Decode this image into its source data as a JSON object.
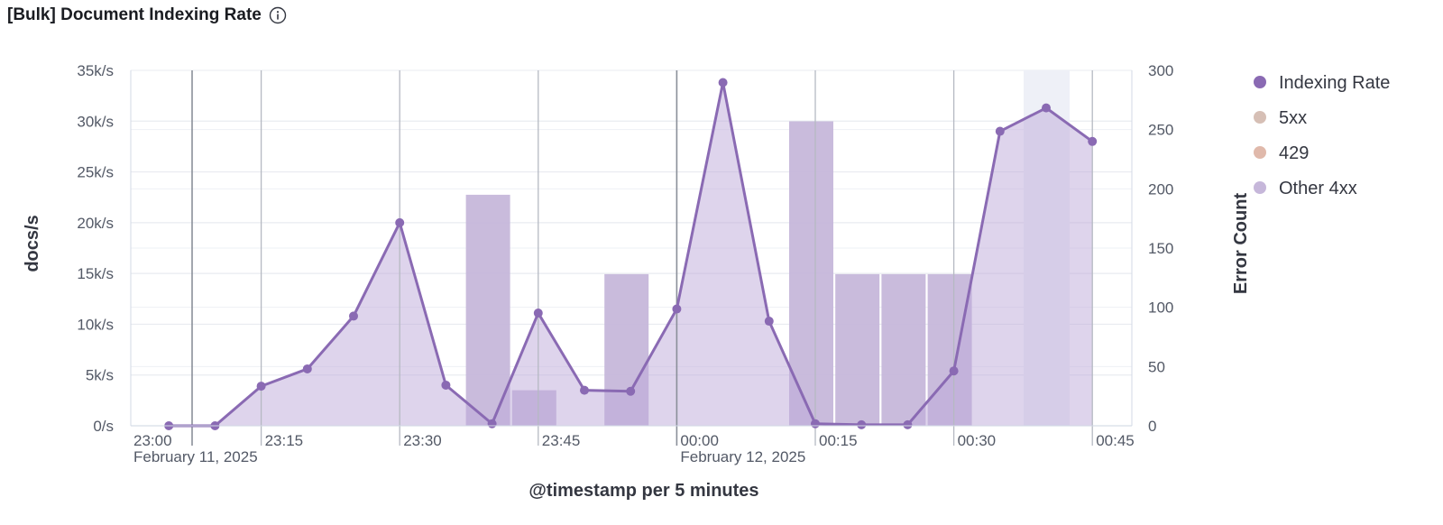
{
  "panel": {
    "title": "[Bulk] Document Indexing Rate"
  },
  "chart_data": {
    "type": "line",
    "xlabel": "@timestamp per 5 minutes",
    "ylabel": "docs/s",
    "y2label": "Error Count",
    "ylim": [
      0,
      35000
    ],
    "y2lim": [
      0,
      300
    ],
    "y_ticks": [
      "0/s",
      "5k/s",
      "10k/s",
      "15k/s",
      "20k/s",
      "25k/s",
      "30k/s",
      "35k/s"
    ],
    "y2_ticks": [
      "0",
      "50",
      "100",
      "150",
      "200",
      "250",
      "300"
    ],
    "x_ticks": [
      {
        "time": "23:00",
        "date": "February 11, 2025"
      },
      {
        "time": "23:15",
        "date": ""
      },
      {
        "time": "23:30",
        "date": ""
      },
      {
        "time": "23:45",
        "date": ""
      },
      {
        "time": "00:00",
        "date": "February 12, 2025"
      },
      {
        "time": "00:15",
        "date": ""
      },
      {
        "time": "00:30",
        "date": ""
      },
      {
        "time": "00:45",
        "date": ""
      }
    ],
    "legend_position": "right",
    "highlighted_bucket": "00:40",
    "series": [
      {
        "name": "Indexing Rate",
        "type": "area-line",
        "axis": "left",
        "color": "#8a6ab3",
        "x": [
          "23:05",
          "23:10",
          "23:15",
          "23:20",
          "23:25",
          "23:30",
          "23:35",
          "23:40",
          "23:45",
          "23:50",
          "23:55",
          "00:00",
          "00:05",
          "00:10",
          "00:15",
          "00:20",
          "00:25",
          "00:30",
          "00:35",
          "00:40",
          "00:45",
          "00:50"
        ],
        "values": [
          0,
          0,
          3900,
          5600,
          10800,
          20000,
          4000,
          200,
          11100,
          3500,
          3400,
          11500,
          33800,
          10300,
          200,
          100,
          100,
          5400,
          29000,
          31300,
          28000,
          null
        ]
      },
      {
        "name": "5xx",
        "type": "bar",
        "axis": "right",
        "color": "#d6bfb5",
        "x": [],
        "values": []
      },
      {
        "name": "429",
        "type": "bar",
        "axis": "right",
        "color": "#e0b9ab",
        "x": [],
        "values": []
      },
      {
        "name": "Other 4xx",
        "type": "bar",
        "axis": "right",
        "color": "#c6b7da",
        "x": [
          "23:40",
          "23:45",
          "23:55",
          "00:15",
          "00:20",
          "00:25",
          "00:30"
        ],
        "values": [
          195,
          30,
          128,
          257,
          128,
          128,
          128
        ]
      }
    ]
  }
}
